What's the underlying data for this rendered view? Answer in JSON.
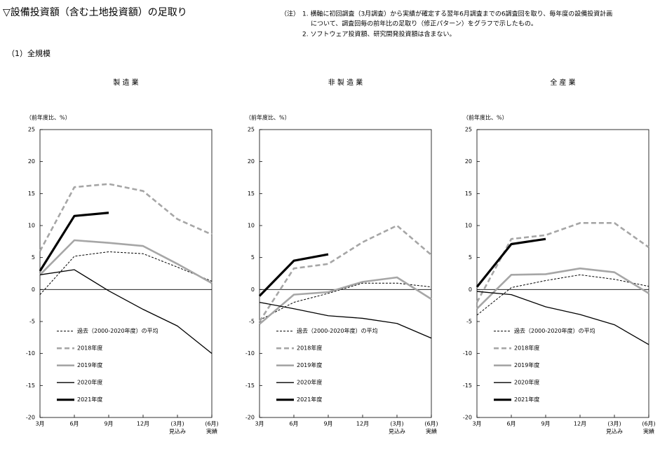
{
  "title": "▽設備投資額（含む土地投資額）の足取り",
  "note_label": "（注）",
  "note_lines": [
    "1. 横軸に初回調査（3月調査）から実績が確定する翌年6月調査までの6調査回を取り、毎年度の設備投資計画",
    "について、調査回毎の前年比の足取り（修正パターン）をグラフで示したもの。",
    "2. ソフトウェア投資額、研究開発投資額は含まない。"
  ],
  "section": "（1）全規模",
  "chart_data": [
    {
      "type": "line",
      "title": "製 造 業",
      "ylabel": "（前年度比、%）",
      "categories": [
        [
          "3月"
        ],
        [
          "6月"
        ],
        [
          "9月"
        ],
        [
          "12月"
        ],
        [
          "(3月)",
          "見込み"
        ],
        [
          "(6月)",
          "実績"
        ]
      ],
      "ylim": [
        -20,
        25
      ],
      "yticks": [
        25,
        20,
        15,
        10,
        5,
        0,
        -5,
        -10,
        -15,
        -20
      ],
      "legend": "lower left",
      "series": [
        {
          "name": "過去（2000-2020年度）の平均",
          "color": "#000000",
          "linestyle": "dashed",
          "linewidth": 1,
          "values": [
            -0.8,
            5.2,
            5.9,
            5.6,
            3.5,
            1.3
          ]
        },
        {
          "name": "2018年度",
          "color": "#a6a6a6",
          "linestyle": "dashed",
          "linewidth": 2.6,
          "values": [
            6.0,
            16.0,
            16.5,
            15.4,
            11.0,
            8.6
          ]
        },
        {
          "name": "2019年度",
          "color": "#a6a6a6",
          "linestyle": "solid",
          "linewidth": 2.6,
          "values": [
            2.3,
            7.7,
            7.3,
            6.8,
            4.0,
            1.0
          ]
        },
        {
          "name": "2020年度",
          "color": "#000000",
          "linestyle": "solid",
          "linewidth": 1.3,
          "values": [
            2.3,
            3.1,
            -0.2,
            -3.1,
            -5.7,
            -10.0
          ]
        },
        {
          "name": "2021年度",
          "color": "#000000",
          "linestyle": "solid",
          "linewidth": 3.2,
          "values": [
            2.9,
            11.5,
            12.0,
            null,
            null,
            null
          ]
        }
      ]
    },
    {
      "type": "line",
      "title": "非 製 造 業",
      "ylabel": "（前年度比、%）",
      "categories": [
        [
          "3月"
        ],
        [
          "6月"
        ],
        [
          "9月"
        ],
        [
          "12月"
        ],
        [
          "(3月)",
          "見込み"
        ],
        [
          "(6月)",
          "実績"
        ]
      ],
      "ylim": [
        -20,
        25
      ],
      "yticks": [
        25,
        20,
        15,
        10,
        5,
        0,
        -5,
        -10,
        -15,
        -20
      ],
      "legend": "lower left",
      "series": [
        {
          "name": "過去（2000-2020年度）の平均",
          "color": "#000000",
          "linestyle": "dashed",
          "linewidth": 1,
          "values": [
            -4.8,
            -2.0,
            -0.6,
            1.0,
            1.0,
            0.4
          ]
        },
        {
          "name": "2018年度",
          "color": "#a6a6a6",
          "linestyle": "dashed",
          "linewidth": 2.6,
          "values": [
            -5.0,
            3.3,
            4.0,
            7.4,
            10.0,
            5.4
          ]
        },
        {
          "name": "2019年度",
          "color": "#a6a6a6",
          "linestyle": "solid",
          "linewidth": 2.6,
          "values": [
            -5.4,
            -0.8,
            -0.4,
            1.2,
            1.9,
            -1.5
          ]
        },
        {
          "name": "2020年度",
          "color": "#000000",
          "linestyle": "solid",
          "linewidth": 1.3,
          "values": [
            -2.0,
            -3.0,
            -4.1,
            -4.5,
            -5.3,
            -7.6
          ]
        },
        {
          "name": "2021年度",
          "color": "#000000",
          "linestyle": "solid",
          "linewidth": 3.2,
          "values": [
            -1.0,
            4.5,
            5.5,
            null,
            null,
            null
          ]
        }
      ]
    },
    {
      "type": "line",
      "title": "全 産 業",
      "ylabel": "（前年度比、%）",
      "categories": [
        [
          "3月"
        ],
        [
          "6月"
        ],
        [
          "9月"
        ],
        [
          "12月"
        ],
        [
          "(3月)",
          "見込み"
        ],
        [
          "(6月)",
          "実績"
        ]
      ],
      "ylim": [
        -20,
        25
      ],
      "yticks": [
        25,
        20,
        15,
        10,
        5,
        0,
        -5,
        -10,
        -15,
        -20
      ],
      "legend": "lower left",
      "series": [
        {
          "name": "過去（2000-2020年度）の平均",
          "color": "#000000",
          "linestyle": "dashed",
          "linewidth": 1,
          "values": [
            -4.0,
            0.3,
            1.4,
            2.3,
            1.6,
            0.5
          ]
        },
        {
          "name": "2018年度",
          "color": "#a6a6a6",
          "linestyle": "dashed",
          "linewidth": 2.6,
          "values": [
            -2.0,
            7.9,
            8.5,
            10.4,
            10.4,
            6.6
          ]
        },
        {
          "name": "2019年度",
          "color": "#a6a6a6",
          "linestyle": "solid",
          "linewidth": 2.6,
          "values": [
            -3.0,
            2.3,
            2.4,
            3.3,
            2.7,
            -0.6
          ]
        },
        {
          "name": "2020年度",
          "color": "#000000",
          "linestyle": "solid",
          "linewidth": 1.3,
          "values": [
            -0.3,
            -0.8,
            -2.7,
            -3.9,
            -5.5,
            -8.6
          ]
        },
        {
          "name": "2021年度",
          "color": "#000000",
          "linestyle": "solid",
          "linewidth": 3.2,
          "values": [
            0.4,
            7.1,
            7.9,
            null,
            null,
            null
          ]
        }
      ]
    }
  ]
}
